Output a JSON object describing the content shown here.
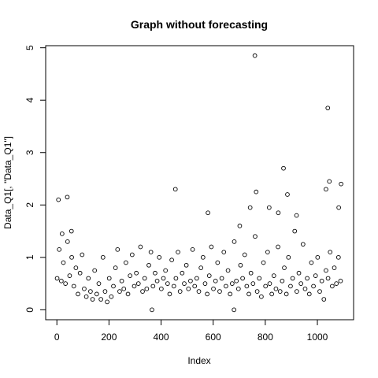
{
  "chart_data": {
    "type": "scatter",
    "title": "Graph without forecasting",
    "x_label": "Index",
    "y_label": "Data_Q1[, \"Data_Q1\"]",
    "color": "#000000",
    "title_color": "#006400",
    "x": [
      1,
      9,
      17,
      25,
      33,
      41,
      49,
      57,
      65,
      73,
      81,
      89,
      97,
      105,
      113,
      121,
      129,
      137,
      145,
      153,
      161,
      169,
      177,
      185,
      193,
      201,
      209,
      217,
      225,
      233,
      241,
      249,
      257,
      265,
      273,
      281,
      289,
      297,
      305,
      313,
      321,
      329,
      337,
      345,
      353,
      361,
      369,
      377,
      385,
      393,
      401,
      409,
      417,
      425,
      433,
      441,
      449,
      457,
      465,
      473,
      481,
      489,
      497,
      505,
      513,
      521,
      529,
      537,
      545,
      553,
      561,
      569,
      577,
      585,
      593,
      601,
      609,
      617,
      625,
      633,
      641,
      649,
      657,
      665,
      673,
      681,
      689,
      697,
      705,
      713,
      721,
      729,
      737,
      745,
      753,
      761,
      769,
      777,
      785,
      793,
      801,
      809,
      817,
      825,
      833,
      841,
      849,
      857,
      865,
      873,
      881,
      889,
      897,
      905,
      913,
      921,
      929,
      937,
      945,
      953,
      961,
      969,
      977,
      985,
      993,
      1001,
      1009,
      1017,
      1025,
      1033,
      1041,
      1049,
      1057,
      1065,
      1073,
      1081,
      1089,
      6,
      20,
      40,
      56,
      455,
      365,
      580,
      680,
      760,
      765,
      870,
      885,
      1040,
      1046,
      1033,
      1091,
      1082,
      742,
      702,
      815,
      850,
      920
    ],
    "values": [
      0.6,
      1.15,
      0.55,
      0.9,
      0.5,
      1.3,
      0.65,
      1.0,
      0.45,
      0.8,
      0.3,
      0.7,
      1.05,
      0.4,
      0.25,
      0.6,
      0.35,
      0.2,
      0.75,
      0.3,
      0.5,
      0.2,
      1.0,
      0.35,
      0.15,
      0.6,
      0.25,
      0.45,
      0.8,
      1.15,
      0.35,
      0.55,
      0.4,
      0.9,
      0.3,
      0.65,
      1.05,
      0.45,
      0.7,
      0.5,
      1.2,
      0.35,
      0.6,
      0.4,
      0.85,
      1.1,
      0.45,
      0.7,
      0.55,
      1.0,
      0.4,
      0.6,
      0.75,
      0.5,
      0.3,
      0.95,
      0.45,
      0.6,
      1.1,
      0.35,
      0.7,
      0.5,
      0.85,
      0.4,
      0.55,
      1.15,
      0.45,
      0.6,
      0.35,
      0.8,
      1.0,
      0.5,
      0.3,
      0.65,
      1.2,
      0.4,
      0.55,
      0.9,
      0.35,
      0.6,
      1.1,
      0.45,
      0.75,
      0.3,
      0.5,
      1.3,
      0.55,
      0.4,
      0.85,
      0.6,
      1.05,
      0.45,
      0.3,
      0.7,
      0.5,
      1.4,
      0.35,
      0.6,
      0.25,
      0.9,
      0.45,
      1.1,
      0.5,
      0.3,
      0.65,
      0.4,
      1.2,
      0.35,
      0.55,
      0.8,
      0.3,
      1.0,
      0.45,
      0.6,
      1.5,
      0.35,
      0.7,
      0.5,
      1.25,
      0.4,
      0.6,
      0.3,
      0.9,
      0.45,
      0.65,
      1.0,
      0.35,
      0.55,
      0.2,
      0.75,
      0.6,
      1.1,
      0.45,
      0.8,
      0.5,
      1.0,
      0.55,
      2.1,
      1.45,
      2.15,
      1.5,
      2.3,
      0.0,
      1.85,
      0.0,
      4.85,
      2.25,
      2.7,
      2.2,
      3.85,
      2.45,
      2.3,
      2.4,
      1.95,
      1.95,
      1.6,
      1.95,
      1.85,
      1.8
    ],
    "xlim": [
      -43,
      1139
    ],
    "ylim": [
      -0.19,
      5.04
    ],
    "xticks": [
      0,
      200,
      400,
      600,
      800,
      1000
    ],
    "yticks": [
      0,
      1,
      2,
      3,
      4,
      5
    ]
  }
}
